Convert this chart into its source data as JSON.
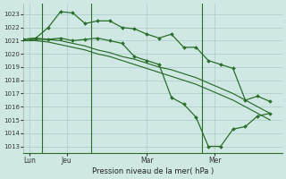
{
  "background_color": "#cfe8e4",
  "grid_color": "#b0d0cc",
  "line_color": "#2a6e2a",
  "title": "Pression niveau de la mer( hPa )",
  "xlabel_day_labels": [
    "Lun",
    "Jeu",
    "Mar",
    "Mer"
  ],
  "xlabel_day_positions": [
    0.5,
    3.5,
    10.0,
    15.5
  ],
  "vline_positions": [
    1.5,
    5.5,
    14.5
  ],
  "ylim": [
    1012.5,
    1023.8
  ],
  "yticks": [
    1013,
    1014,
    1015,
    1016,
    1017,
    1018,
    1019,
    1020,
    1021,
    1022,
    1023
  ],
  "xlim": [
    0,
    21
  ],
  "num_points": 21,
  "smooth1_x": [
    0,
    1,
    2,
    3,
    4,
    5,
    6,
    7,
    8,
    9,
    10,
    11,
    12,
    13,
    14,
    15,
    16,
    17,
    18,
    19,
    20
  ],
  "smooth1_y": [
    1021.0,
    1021.1,
    1021.1,
    1021.0,
    1020.8,
    1020.6,
    1020.3,
    1020.1,
    1019.8,
    1019.6,
    1019.3,
    1019.0,
    1018.8,
    1018.5,
    1018.2,
    1017.8,
    1017.4,
    1017.0,
    1016.5,
    1016.0,
    1015.5
  ],
  "smooth2_x": [
    0,
    1,
    2,
    3,
    4,
    5,
    6,
    7,
    8,
    9,
    10,
    11,
    12,
    13,
    14,
    15,
    16,
    17,
    18,
    19,
    20
  ],
  "smooth2_y": [
    1021.0,
    1021.0,
    1020.9,
    1020.7,
    1020.5,
    1020.3,
    1020.0,
    1019.8,
    1019.5,
    1019.2,
    1018.9,
    1018.6,
    1018.3,
    1018.0,
    1017.7,
    1017.3,
    1016.9,
    1016.5,
    1016.0,
    1015.5,
    1015.0
  ],
  "wavy_x": [
    0,
    1,
    2,
    3,
    4,
    5,
    6,
    7,
    8,
    9,
    10,
    11,
    12,
    13,
    14,
    15,
    16,
    17,
    18,
    19,
    20
  ],
  "wavy_y": [
    1021.1,
    1021.2,
    1022.0,
    1023.2,
    1023.1,
    1022.3,
    1022.5,
    1022.5,
    1022.0,
    1021.9,
    1021.5,
    1021.2,
    1021.5,
    1020.5,
    1020.5,
    1019.5,
    1019.2,
    1018.9,
    1016.5,
    1016.8,
    1016.4
  ],
  "dip_x": [
    0,
    1,
    2,
    3,
    4,
    5,
    6,
    7,
    8,
    9,
    10,
    11,
    12,
    13,
    14,
    15,
    16,
    17,
    18,
    19,
    20
  ],
  "dip_y": [
    1021.1,
    1021.2,
    1021.1,
    1021.2,
    1021.0,
    1021.1,
    1021.2,
    1021.0,
    1020.8,
    1019.8,
    1019.5,
    1019.2,
    1016.7,
    1016.2,
    1015.2,
    1013.0,
    1013.0,
    1014.3,
    1014.5,
    1015.3,
    1015.5
  ]
}
